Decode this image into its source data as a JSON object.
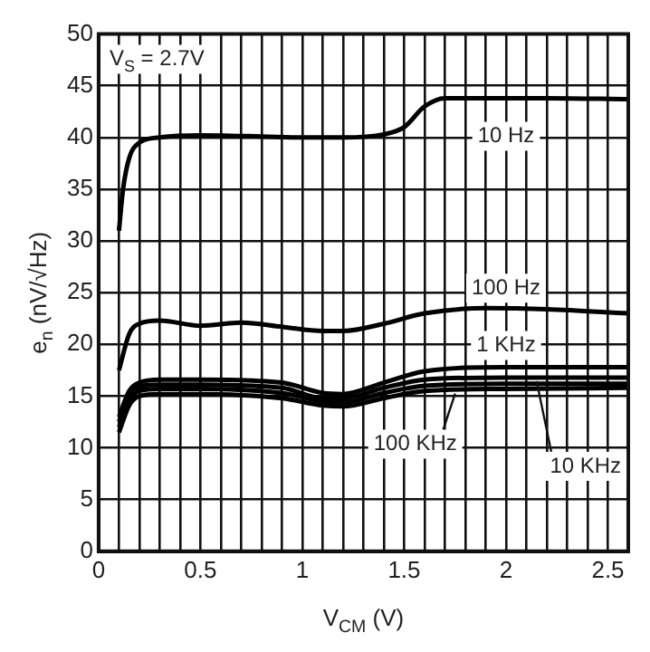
{
  "chart_data": {
    "type": "line",
    "xlabel": "V$_{CM}$ (V)",
    "ylabel": "e$_{n}$ (nV/√Hz)",
    "annotations": [
      "V$_{S}$ = 2.7V",
      {
        "text": "10 Hz",
        "x": 2.0,
        "y": 43.8
      },
      {
        "text": "100 Hz",
        "x": 2.0,
        "y": 23.5
      },
      {
        "text": "1 KHz",
        "x": 2.0,
        "y": 17.8
      },
      {
        "text": "100 KHz",
        "x": 1.75,
        "y": 15.6
      },
      {
        "text": "10 KHz",
        "x": 2.15,
        "y": 16.8
      }
    ],
    "series": [
      {
        "color": "#000000",
        "x": [
          0.1,
          0.12,
          0.15,
          0.2,
          0.3,
          0.5,
          0.8,
          1.0,
          1.2,
          1.4,
          1.5,
          1.6,
          1.7,
          1.8,
          2.2,
          2.6
        ],
        "values": [
          31,
          35,
          38,
          39.5,
          40,
          40.2,
          40.1,
          40,
          40,
          40.3,
          41,
          43,
          43.8,
          43.8,
          43.8,
          43.7
        ]
      },
      {
        "color": "#000000",
        "x": [
          0.1,
          0.15,
          0.2,
          0.3,
          0.5,
          0.7,
          0.9,
          1.1,
          1.2,
          1.4,
          1.6,
          1.9,
          2.2,
          2.6
        ],
        "values": [
          17.5,
          21,
          22,
          22.3,
          21.8,
          22.1,
          21.7,
          21.3,
          21.3,
          22,
          23,
          23.5,
          23.4,
          23
        ]
      },
      {
        "color": "#000000",
        "x": [
          0.1,
          0.15,
          0.2,
          0.3,
          0.5,
          0.9,
          1.1,
          1.2,
          1.4,
          1.6,
          2.0,
          2.6
        ],
        "values": [
          13,
          15.5,
          16.3,
          16.6,
          16.6,
          16.3,
          15.3,
          15.2,
          16.3,
          17.4,
          17.8,
          17.8
        ]
      },
      {
        "color": "#000000",
        "x": [
          0.1,
          0.15,
          0.2,
          0.3,
          0.5,
          0.9,
          1.1,
          1.2,
          1.4,
          1.6,
          2.0,
          2.6
        ],
        "values": [
          12.5,
          15,
          15.9,
          16.1,
          16.1,
          15.8,
          14.8,
          14.8,
          15.8,
          16.6,
          16.8,
          16.8
        ]
      },
      {
        "color": "#000000",
        "x": [
          0.1,
          0.15,
          0.2,
          0.3,
          0.5,
          0.9,
          1.1,
          1.2,
          1.4,
          1.6,
          2.0,
          2.6
        ],
        "values": [
          12,
          14.6,
          15.5,
          15.7,
          15.7,
          15.3,
          14.5,
          14.4,
          15.3,
          16,
          16.2,
          16.2
        ]
      },
      {
        "color": "#000000",
        "x": [
          0.1,
          0.15,
          0.2,
          0.3,
          0.5,
          0.9,
          1.1,
          1.2,
          1.4,
          1.6,
          2.0,
          2.6
        ],
        "values": [
          11.5,
          14.1,
          15,
          15.2,
          15.2,
          14.8,
          14.1,
          14,
          14.8,
          15.5,
          15.7,
          15.8
        ]
      }
    ],
    "xlim": [
      0,
      2.6
    ],
    "xticks": [
      0,
      {
        "value": 0.1,
        "label": null
      },
      {
        "value": 0.2,
        "label": null
      },
      {
        "value": 0.3,
        "label": null
      },
      {
        "value": 0.4,
        "label": null
      },
      0.5,
      {
        "value": 0.6,
        "label": null
      },
      {
        "value": 0.7,
        "label": null
      },
      {
        "value": 0.8,
        "label": null
      },
      {
        "value": 0.9,
        "label": null
      },
      1,
      {
        "value": 1.1,
        "label": null
      },
      {
        "value": 1.2,
        "label": null
      },
      {
        "value": 1.3,
        "label": null
      },
      {
        "value": 1.4,
        "label": null
      },
      1.5,
      {
        "value": 1.6,
        "label": null
      },
      {
        "value": 1.7,
        "label": null
      },
      {
        "value": 1.8,
        "label": null
      },
      {
        "value": 1.9,
        "label": null
      },
      2,
      {
        "value": 2.1,
        "label": null
      },
      {
        "value": 2.2,
        "label": null
      },
      {
        "value": 2.3,
        "label": null
      },
      {
        "value": 2.4,
        "label": null
      },
      2.5
    ],
    "ylim": [
      0,
      50
    ],
    "yticks": [
      0,
      5,
      10,
      15,
      20,
      25,
      30,
      35,
      40,
      45,
      50
    ],
    "grid": true,
    "legend": false,
    "marker": "none",
    "line_style": "solid"
  }
}
